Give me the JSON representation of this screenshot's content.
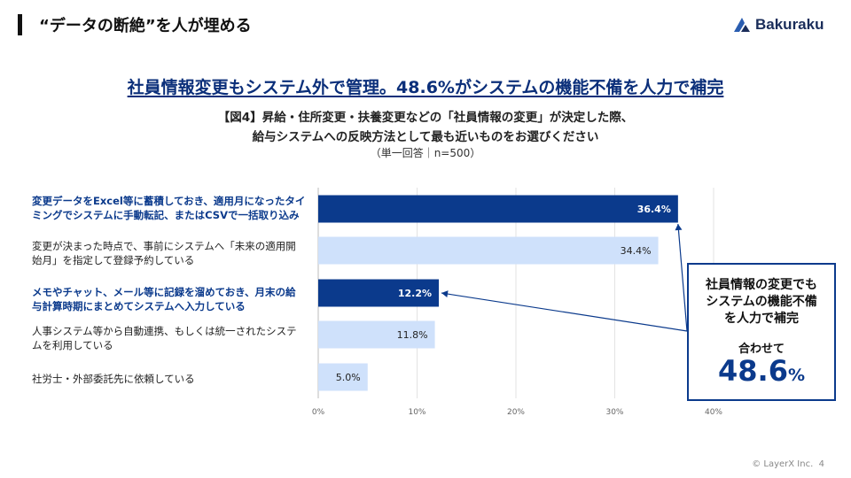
{
  "header": {
    "title": "“データの断絶”を人が埋める",
    "logo_text": "Bakuraku",
    "page_number": "4",
    "copyright": "© LayerX Inc."
  },
  "headline": "社員情報変更もシステム外で管理。48.6%がシステムの機能不備を人力で補完",
  "question": {
    "line1": "【図4】昇給・住所変更・扶養変更などの「社員情報の変更」が決定した際、",
    "line2": "給与システムへの反映方法として最も近いものをお選びください",
    "note": "（単一回答｜n=500）"
  },
  "callout": {
    "line1": "社員情報の変更でも",
    "line2": "システムの機能不備",
    "line3": "を人力で補完",
    "sub": "合わせて",
    "value": "48.6",
    "unit": "%"
  },
  "colors": {
    "highlight": "#0b3a8c",
    "light": "#cfe1fb",
    "accent": "#0b2f7a"
  },
  "chart_data": {
    "type": "bar",
    "orientation": "horizontal",
    "categories": [
      {
        "line1": "変更データをExcel等に蓄積しておき、適用月になったタイ",
        "line2": "ミングでシステムに手動転記、またはCSVで一括取り込み"
      },
      {
        "line1": "変更が決まった時点で、事前にシステムへ「未来の適用開",
        "line2": "始月」を指定して登録予約している"
      },
      {
        "line1": "メモやチャット、メール等に記録を溜めておき、月末の給",
        "line2": "与計算時期にまとめてシステムへ入力している"
      },
      {
        "line1": "人事システム等から自動連携、もしくは統一されたシステ",
        "line2": "ムを利用している"
      },
      {
        "line1": "社労士・外部委託先に依頼している",
        "line2": ""
      }
    ],
    "values": [
      36.4,
      34.4,
      12.2,
      11.8,
      5.0
    ],
    "value_labels": [
      "36.4%",
      "34.4%",
      "12.2%",
      "11.8%",
      "5.0%"
    ],
    "highlighted": [
      true,
      false,
      true,
      false,
      false
    ],
    "xlim": [
      0,
      40
    ],
    "x_ticks": [
      "0%",
      "10%",
      "20%",
      "30%",
      "40%"
    ],
    "grid": true
  }
}
